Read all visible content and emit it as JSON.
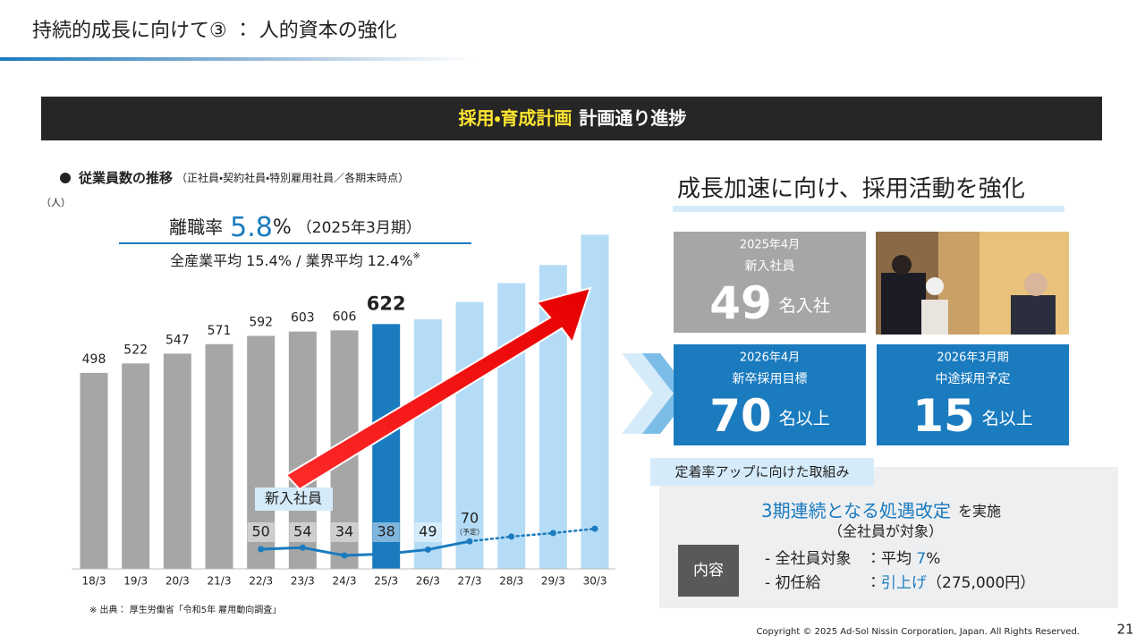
{
  "header": {
    "title": "持続的成長に向けて③ ： 人的資本の強化"
  },
  "banner": {
    "highlight": "採用・育成計画",
    "text": "計画通り進捗"
  },
  "chart_data": {
    "type": "bar",
    "title": "従業員数の推移",
    "subtitle": "（正社員・契約社員・特別雇用社員／各期末時点）",
    "y_label": "（人）",
    "categories": [
      "18/3",
      "19/3",
      "20/3",
      "21/3",
      "22/3",
      "23/3",
      "24/3",
      "25/3",
      "26/3",
      "27/3",
      "28/3",
      "29/3",
      "30/3"
    ],
    "values": [
      498,
      522,
      547,
      571,
      592,
      603,
      606,
      622,
      634,
      678,
      726,
      772,
      849
    ],
    "value_labels": [
      "498",
      "522",
      "547",
      "571",
      "592",
      "603",
      "606",
      "622",
      null,
      null,
      null,
      null,
      null
    ],
    "colors": [
      "#a6a6a6",
      "#a6a6a6",
      "#a6a6a6",
      "#a6a6a6",
      "#a6a6a6",
      "#a6a6a6",
      "#a6a6a6",
      "#1a7bbf",
      "#b5dcf6",
      "#b5dcf6",
      "#b5dcf6",
      "#b5dcf6",
      "#b5dcf6"
    ],
    "highlight_index": 7,
    "ylim": [
      0,
      1000
    ],
    "grid": false,
    "line": {
      "name": "新入社員",
      "color": "#1a7bbf",
      "values": [
        null,
        null,
        null,
        null,
        50,
        54,
        34,
        38,
        49,
        70,
        82,
        91,
        102
      ],
      "value_labels": [
        null,
        null,
        null,
        null,
        "50",
        "54",
        "34",
        "38",
        "49",
        "70",
        null,
        null,
        null
      ],
      "notes": [
        null,
        null,
        null,
        null,
        null,
        null,
        null,
        null,
        null,
        "（予定）",
        null,
        null,
        null
      ],
      "styles": [
        "solid",
        "solid",
        "solid",
        "solid",
        "solid",
        "solid",
        "solid",
        "solid",
        "solid",
        "solid",
        "dotted",
        "dotted",
        "dotted"
      ]
    }
  },
  "retention": {
    "label": "離職率",
    "value": "5.8",
    "unit": "%",
    "period": "（2025年3月期）",
    "comparison": "全産業平均 15.4% / 業界平均 12.4%",
    "note_mark": "※"
  },
  "recruiting": {
    "heading": "成長加速に向け、採用活動を強化",
    "cards": [
      {
        "period": "2025年4月",
        "label": "新入社員",
        "number": "49",
        "unit": "名入社"
      },
      {
        "period": "2026年4月",
        "label": "新卒採用目標",
        "number": "70",
        "unit": "名以上"
      },
      {
        "period": "2026年3月期",
        "label": "中途採用予定",
        "number": "15",
        "unit": "名以上"
      }
    ]
  },
  "measures": {
    "tag": "定着率アップに向けた取組み",
    "headline": "3期連続となる処遇改定",
    "headline_suffix": "を実施",
    "scope": "（全社員が対象）",
    "content_label": "内容",
    "items": [
      {
        "name": "- 全社員対象",
        "parts": [
          {
            "text": "：平均 "
          },
          {
            "text": "7",
            "highlight": true
          },
          {
            "text": "%"
          }
        ]
      },
      {
        "name": "- 初任給",
        "parts": [
          {
            "text": "："
          },
          {
            "text": "引上げ",
            "highlight": true
          },
          {
            "text": "（275,000円）"
          }
        ]
      }
    ]
  },
  "source": "※ 出典： 厚生労働省「令和5年 雇用動向調査」",
  "footer": {
    "copyright": "Copyright © 2025 Ad-Sol Nissin Corporation, Japan. All Rights Reserved.",
    "page": "21"
  }
}
